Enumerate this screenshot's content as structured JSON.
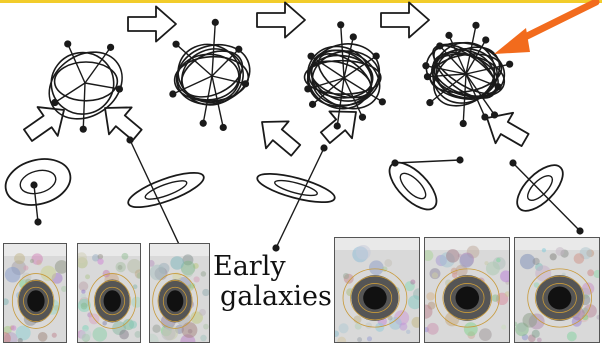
{
  "caption": {
    "line1": "Early",
    "line2": "galaxies"
  },
  "colors": {
    "ink": "#1a1a1a",
    "highlight_arrow": "#f26b1d",
    "top_strip": "#f2cc2a",
    "contour": "#c89a3a"
  },
  "diagram": {
    "merger_stages": [
      {
        "stage": 1,
        "rings": 3,
        "spokes": 5
      },
      {
        "stage": 2,
        "rings": 6,
        "spokes": 7
      },
      {
        "stage": 3,
        "rings": 9,
        "spokes": 9
      },
      {
        "stage": 4,
        "rings": 10,
        "spokes": 12
      }
    ],
    "flow_arrows": 3,
    "inflow_arrows": 4,
    "highlighted_stage": 4,
    "disk_icons": 6
  },
  "observation_panels": {
    "left_group": 3,
    "right_group": 3
  }
}
